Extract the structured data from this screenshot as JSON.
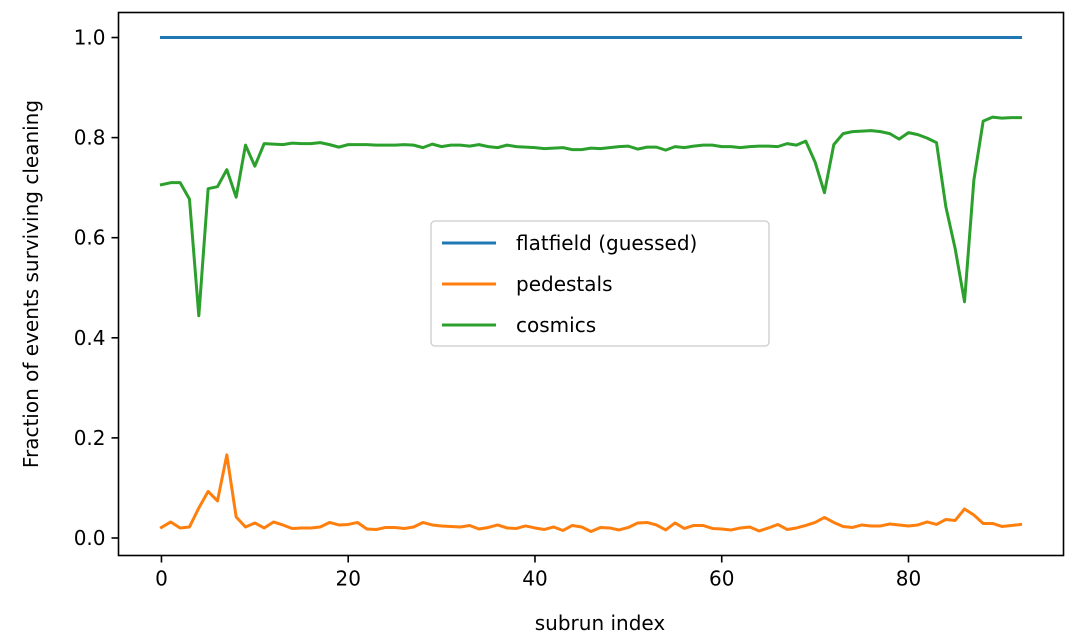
{
  "chart_data": {
    "type": "line",
    "xlabel": "subrun index",
    "ylabel": "Fraction of events surviving cleaning",
    "xlim": [
      -4.6,
      96.6
    ],
    "ylim": [
      -0.035,
      1.05
    ],
    "xticks": [
      0,
      20,
      40,
      60,
      80
    ],
    "yticks": [
      0.0,
      0.2,
      0.4,
      0.6,
      0.8,
      1.0
    ],
    "xtick_labels": [
      "0",
      "20",
      "40",
      "60",
      "80"
    ],
    "ytick_labels": [
      "0.0",
      "0.2",
      "0.4",
      "0.6",
      "0.8",
      "1.0"
    ],
    "grid": false,
    "legend_position": "center",
    "series": [
      {
        "name": "flatfield (guessed)",
        "color": "#1f77b4",
        "x": [
          0,
          92
        ],
        "y": [
          1.0,
          1.0
        ]
      },
      {
        "name": "pedestals",
        "color": "#ff7f0e",
        "x": [
          0,
          1,
          2,
          3,
          4,
          5,
          6,
          7,
          8,
          9,
          10,
          11,
          12,
          13,
          14,
          15,
          16,
          17,
          18,
          19,
          20,
          21,
          22,
          23,
          24,
          25,
          26,
          27,
          28,
          29,
          30,
          31,
          32,
          33,
          34,
          35,
          36,
          37,
          38,
          39,
          40,
          41,
          42,
          43,
          44,
          45,
          46,
          47,
          48,
          49,
          50,
          51,
          52,
          53,
          54,
          55,
          56,
          57,
          58,
          59,
          60,
          61,
          62,
          63,
          64,
          65,
          66,
          67,
          68,
          69,
          70,
          71,
          72,
          73,
          74,
          75,
          76,
          77,
          78,
          79,
          80,
          81,
          82,
          83,
          84,
          85,
          86,
          87,
          88,
          89,
          90,
          91,
          92
        ],
        "y": [
          0.021,
          0.032,
          0.02,
          0.022,
          0.06,
          0.093,
          0.074,
          0.166,
          0.042,
          0.022,
          0.03,
          0.02,
          0.032,
          0.026,
          0.019,
          0.02,
          0.02,
          0.022,
          0.031,
          0.026,
          0.027,
          0.031,
          0.018,
          0.017,
          0.021,
          0.021,
          0.019,
          0.022,
          0.031,
          0.026,
          0.024,
          0.023,
          0.022,
          0.025,
          0.018,
          0.021,
          0.026,
          0.02,
          0.019,
          0.024,
          0.02,
          0.017,
          0.022,
          0.015,
          0.025,
          0.022,
          0.013,
          0.021,
          0.02,
          0.016,
          0.021,
          0.03,
          0.031,
          0.026,
          0.016,
          0.03,
          0.019,
          0.025,
          0.025,
          0.019,
          0.018,
          0.016,
          0.02,
          0.022,
          0.014,
          0.02,
          0.027,
          0.017,
          0.02,
          0.025,
          0.031,
          0.041,
          0.031,
          0.023,
          0.021,
          0.026,
          0.024,
          0.024,
          0.028,
          0.026,
          0.024,
          0.026,
          0.032,
          0.027,
          0.037,
          0.035,
          0.058,
          0.046,
          0.029,
          0.029,
          0.023,
          0.025,
          0.027
        ]
      },
      {
        "name": "cosmics",
        "color": "#2ca02c",
        "x": [
          0,
          1,
          2,
          3,
          4,
          5,
          6,
          7,
          8,
          9,
          10,
          11,
          12,
          13,
          14,
          15,
          16,
          17,
          18,
          19,
          20,
          21,
          22,
          23,
          24,
          25,
          26,
          27,
          28,
          29,
          30,
          31,
          32,
          33,
          34,
          35,
          36,
          37,
          38,
          39,
          40,
          41,
          42,
          43,
          44,
          45,
          46,
          47,
          48,
          49,
          50,
          51,
          52,
          53,
          54,
          55,
          56,
          57,
          58,
          59,
          60,
          61,
          62,
          63,
          64,
          65,
          66,
          67,
          68,
          69,
          70,
          71,
          72,
          73,
          74,
          75,
          76,
          77,
          78,
          79,
          80,
          81,
          82,
          83,
          84,
          85,
          86,
          87,
          88,
          89,
          90,
          91,
          92
        ],
        "y": [
          0.706,
          0.71,
          0.71,
          0.677,
          0.444,
          0.698,
          0.702,
          0.736,
          0.681,
          0.785,
          0.743,
          0.788,
          0.787,
          0.786,
          0.789,
          0.788,
          0.788,
          0.79,
          0.786,
          0.781,
          0.786,
          0.786,
          0.786,
          0.785,
          0.785,
          0.785,
          0.786,
          0.785,
          0.78,
          0.787,
          0.782,
          0.785,
          0.785,
          0.783,
          0.786,
          0.782,
          0.78,
          0.785,
          0.782,
          0.781,
          0.78,
          0.778,
          0.779,
          0.78,
          0.776,
          0.776,
          0.779,
          0.778,
          0.78,
          0.782,
          0.783,
          0.777,
          0.781,
          0.781,
          0.775,
          0.782,
          0.78,
          0.783,
          0.785,
          0.785,
          0.782,
          0.782,
          0.78,
          0.782,
          0.783,
          0.783,
          0.782,
          0.788,
          0.785,
          0.793,
          0.751,
          0.69,
          0.786,
          0.808,
          0.812,
          0.813,
          0.814,
          0.812,
          0.808,
          0.797,
          0.81,
          0.806,
          0.799,
          0.79,
          0.662,
          0.578,
          0.472,
          0.715,
          0.833,
          0.841,
          0.839,
          0.84,
          0.84
        ]
      }
    ]
  }
}
